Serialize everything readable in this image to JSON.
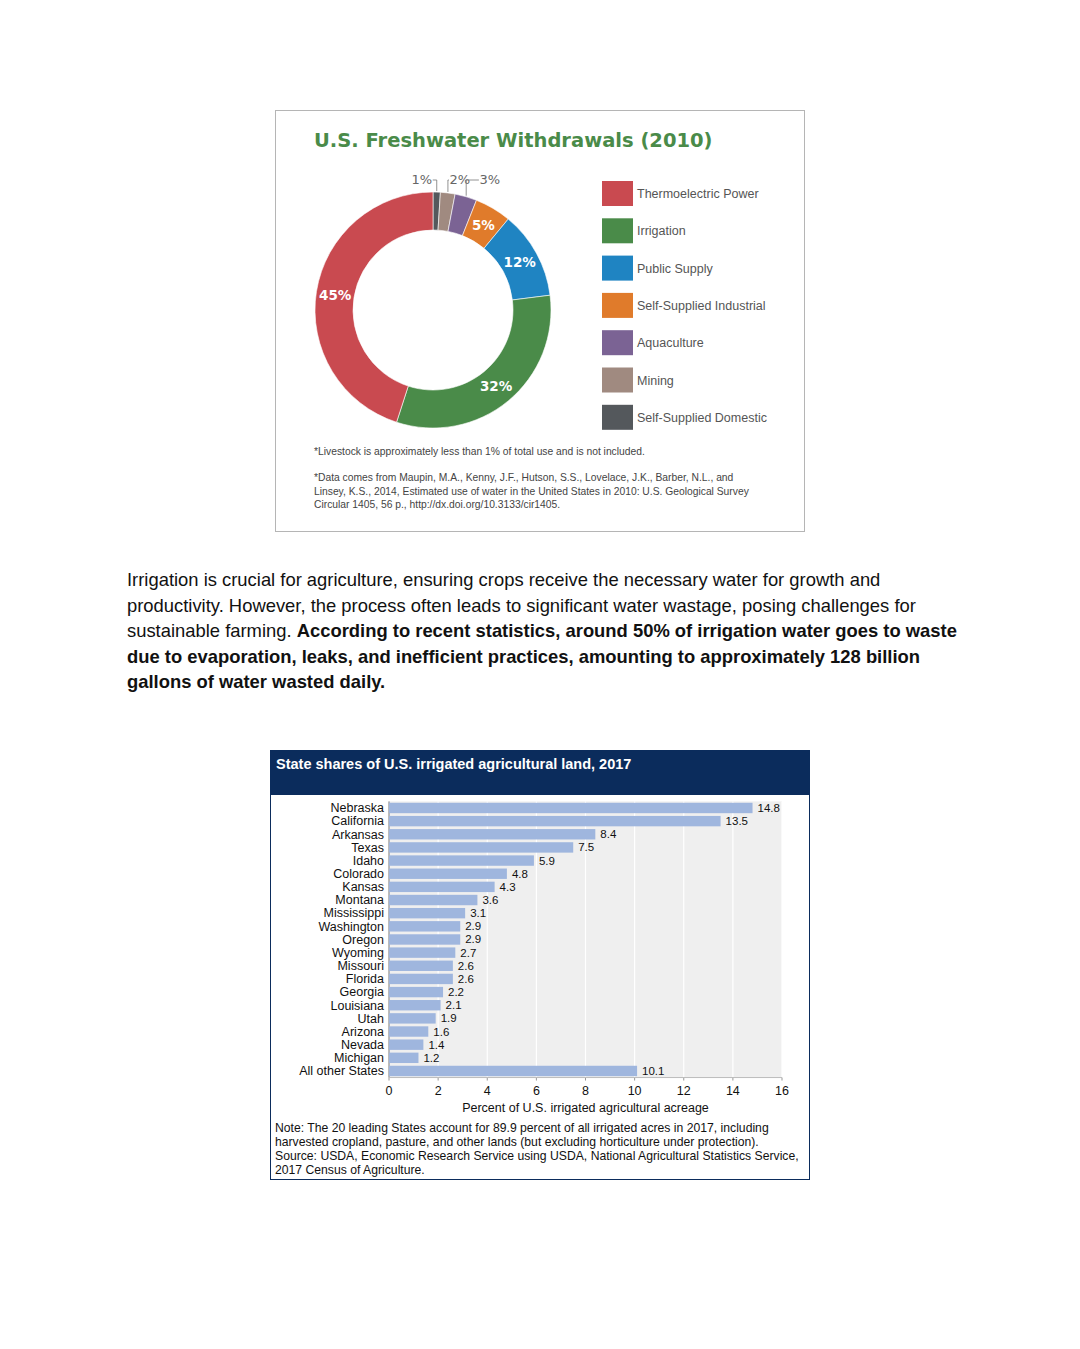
{
  "chart_data": [
    {
      "type": "donut",
      "title": "U.S. Freshwater Withdrawals (2010)",
      "categories": [
        "Thermoelectric Power",
        "Irrigation",
        "Public Supply",
        "Self-Supplied Industrial",
        "Aquaculture",
        "Mining",
        "Self-Supplied Domestic"
      ],
      "values": [
        45,
        32,
        12,
        5,
        3,
        2,
        1
      ],
      "value_labels": [
        "45%",
        "32%",
        "12%",
        "5%",
        "3%",
        "2%",
        "1%"
      ],
      "colors": [
        "#c94a50",
        "#4a8b49",
        "#1f84c2",
        "#e07b2b",
        "#7b6394",
        "#a08a80",
        "#54585c"
      ],
      "data_labels": true,
      "legend": "right",
      "notes": [
        "*Livestock is approximately less than 1% of total use and is not included.",
        "*Data comes from Maupin, M.A., Kenny, J.F., Hutson, S.S., Lovelace, J.K., Barber, N.L., and Linsey, K.S., 2014, Estimated use of water in the United States in 2010: U.S. Geological Survey Circular 1405, 56 p., http://dx.doi.org/10.3133/cir1405."
      ]
    },
    {
      "type": "bar",
      "title": "State shares of U.S. irrigated agricultural land, 2017",
      "orientation": "horizontal",
      "categories": [
        "Nebraska",
        "California",
        "Arkansas",
        "Texas",
        "Idaho",
        "Colorado",
        "Kansas",
        "Montana",
        "Mississippi",
        "Washington",
        "Oregon",
        "Wyoming",
        "Missouri",
        "Florida",
        "Georgia",
        "Louisiana",
        "Utah",
        "Arizona",
        "Nevada",
        "Michigan",
        "All other States"
      ],
      "values": [
        14.8,
        13.5,
        8.4,
        7.5,
        5.9,
        4.8,
        4.3,
        3.6,
        3.1,
        2.9,
        2.9,
        2.7,
        2.6,
        2.6,
        2.2,
        2.1,
        1.9,
        1.6,
        1.4,
        1.2,
        10.1
      ],
      "color": "#9fb6de",
      "xlim": [
        0,
        16
      ],
      "xticks": [
        0,
        2,
        4,
        6,
        8,
        10,
        12,
        14,
        16
      ],
      "x_label": "Percent of U.S. irrigated agricultural acreage",
      "grid": true,
      "data_labels": true,
      "notes": [
        "Note: The 20 leading States account for 89.9 percent of all irrigated acres in 2017, including harvested cropland, pasture, and other lands (but excluding horticulture under protection).",
        "Source: USDA, Economic Research Service using USDA, National Agricultural Statistics Service, 2017 Census of Agriculture."
      ]
    }
  ],
  "paragraph": {
    "text": "Irrigation is crucial for agriculture, ensuring crops receive the necessary water for growth and productivity. However, the process often leads to significant water wastage, posing challenges for sustainable farming.",
    "bold": "According to recent statistics, around 50% of irrigation water goes to waste due to evaporation, leaks, and inefficient practices, amounting to approximately 128 billion gallons of water wasted daily."
  }
}
